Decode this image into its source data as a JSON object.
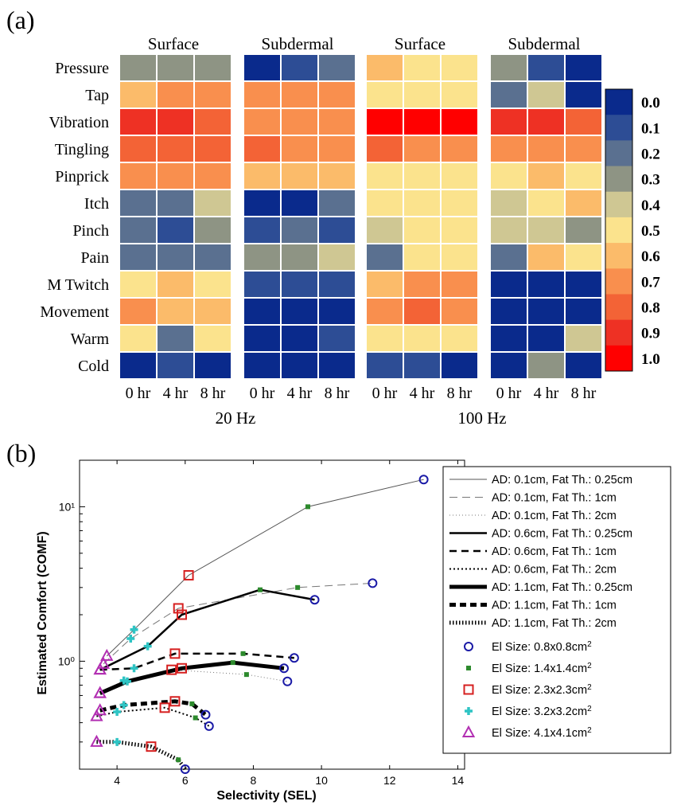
{
  "panel_a": {
    "label": "(a)",
    "group_titles": [
      "Surface",
      "Subdermal",
      "Surface",
      "Subdermal"
    ],
    "row_labels": [
      "Pressure",
      "Tap",
      "Vibration",
      "Tingling",
      "Pinprick",
      "Itch",
      "Pinch",
      "Pain",
      "M Twitch",
      "Movement",
      "Warm",
      "Cold"
    ],
    "time_labels": [
      "0 hr",
      "4 hr",
      "8 hr"
    ],
    "frequency_labels": [
      "20 Hz",
      "100 Hz"
    ],
    "colorbar_ticks": [
      "0.0",
      "0.1",
      "0.2",
      "0.3",
      "0.4",
      "0.5",
      "0.6",
      "0.7",
      "0.8",
      "0.9",
      "1.0"
    ],
    "colormap": [
      "#0a2a8c",
      "#2d4d95",
      "#5a7090",
      "#8e9484",
      "#cfc793",
      "#fbe38d",
      "#fbbb6a",
      "#f98f4e",
      "#f36336",
      "#ee3124",
      "#ff0000"
    ]
  },
  "panel_b": {
    "label": "(b)",
    "xlabel": "Selectivity (SEL)",
    "ylabel": "Estimated Comfort (COMF)",
    "x_ticks": [
      "4",
      "6",
      "8",
      "10",
      "12",
      "14"
    ],
    "y_ticks": [
      "10⁰",
      "10¹"
    ],
    "legend_lines": [
      "AD: 0.1cm, Fat Th.: 0.25cm",
      "AD: 0.1cm, Fat Th.: 1cm",
      "AD: 0.1cm, Fat Th.: 2cm",
      "AD: 0.6cm, Fat Th.: 0.25cm",
      "AD: 0.6cm, Fat Th.: 1cm",
      "AD: 0.6cm, Fat Th.: 2cm",
      "AD: 1.1cm, Fat Th.: 0.25cm",
      "AD: 1.1cm, Fat Th.: 1cm",
      "AD: 1.1cm, Fat Th.: 2cm"
    ],
    "legend_markers": [
      {
        "text": "El Size: 0.8x0.8cm",
        "sup": "2"
      },
      {
        "text": "El Size: 1.4x1.4cm",
        "sup": "2"
      },
      {
        "text": "El Size: 2.3x2.3cm",
        "sup": "2"
      },
      {
        "text": "El Size: 3.2x3.2cm",
        "sup": "2"
      },
      {
        "text": "El Size: 4.1x4.1cm",
        "sup": "2"
      }
    ]
  },
  "chart_data": [
    {
      "type": "heatmap",
      "title": "",
      "groups": [
        {
          "frequency": "20 Hz",
          "location": "Surface"
        },
        {
          "frequency": "20 Hz",
          "location": "Subdermal"
        },
        {
          "frequency": "100 Hz",
          "location": "Surface"
        },
        {
          "frequency": "100 Hz",
          "location": "Subdermal"
        }
      ],
      "rows": [
        "Pressure",
        "Tap",
        "Vibration",
        "Tingling",
        "Pinprick",
        "Itch",
        "Pinch",
        "Pain",
        "M Twitch",
        "Movement",
        "Warm",
        "Cold"
      ],
      "columns": [
        "0 hr",
        "4 hr",
        "8 hr"
      ],
      "scale": [
        0.0,
        1.0
      ],
      "values": [
        [
          [
            0.3,
            0.3,
            0.3
          ],
          [
            0.6,
            0.7,
            0.7
          ],
          [
            0.9,
            0.85,
            0.8
          ],
          [
            0.75,
            0.75,
            0.75
          ],
          [
            0.7,
            0.65,
            0.65
          ],
          [
            0.2,
            0.2,
            0.4
          ],
          [
            0.2,
            0.1,
            0.3
          ],
          [
            0.15,
            0.15,
            0.2
          ],
          [
            0.5,
            0.55,
            0.5
          ],
          [
            0.65,
            0.6,
            0.6
          ],
          [
            0.5,
            0.2,
            0.5
          ],
          [
            0.0,
            0.05,
            0.0
          ]
        ],
        [
          [
            0.0,
            0.1,
            0.2
          ],
          [
            0.65,
            0.65,
            0.7
          ],
          [
            0.65,
            0.65,
            0.7
          ],
          [
            0.75,
            0.65,
            0.65
          ],
          [
            0.55,
            0.6,
            0.6
          ],
          [
            0.0,
            0.0,
            0.2
          ],
          [
            0.1,
            0.2,
            0.1
          ],
          [
            0.3,
            0.3,
            0.4
          ],
          [
            0.1,
            0.1,
            0.1
          ],
          [
            0.0,
            0.0,
            0.0
          ],
          [
            0.0,
            0.0,
            0.05
          ],
          [
            0.0,
            0.0,
            0.0
          ]
        ],
        [
          [
            0.55,
            0.5,
            0.5
          ],
          [
            0.5,
            0.5,
            0.45
          ],
          [
            1.0,
            1.0,
            1.0
          ],
          [
            0.75,
            0.7,
            0.7
          ],
          [
            0.5,
            0.5,
            0.5
          ],
          [
            0.5,
            0.5,
            0.5
          ],
          [
            0.4,
            0.5,
            0.5
          ],
          [
            0.2,
            0.5,
            0.5
          ],
          [
            0.6,
            0.65,
            0.65
          ],
          [
            0.7,
            0.8,
            0.7
          ],
          [
            0.5,
            0.5,
            0.5
          ],
          [
            0.1,
            0.1,
            0.0
          ]
        ],
        [
          [
            0.3,
            0.1,
            0.0
          ],
          [
            0.2,
            0.4,
            0.0
          ],
          [
            0.9,
            0.85,
            0.8
          ],
          [
            0.7,
            0.7,
            0.7
          ],
          [
            0.5,
            0.55,
            0.5
          ],
          [
            0.4,
            0.5,
            0.55
          ],
          [
            0.4,
            0.4,
            0.3
          ],
          [
            0.2,
            0.55,
            0.5
          ],
          [
            0.0,
            0.0,
            0.0
          ],
          [
            0.0,
            0.0,
            0.0
          ],
          [
            0.0,
            0.0,
            0.35
          ],
          [
            0.0,
            0.3,
            0.0
          ]
        ]
      ]
    },
    {
      "type": "line",
      "title": "",
      "xlabel": "Selectivity (SEL)",
      "ylabel": "Estimated Comfort (COMF)",
      "xlim": [
        2.9,
        14.2
      ],
      "ylim": [
        0.2,
        20
      ],
      "yscale": "log",
      "legend_position": "right",
      "series": [
        {
          "name": "AD: 0.1cm, Fat Th.: 0.25cm",
          "style": "thin-solid",
          "x": [
            3.7,
            4.5,
            6.1,
            9.6,
            13.0
          ],
          "y": [
            1.08,
            1.6,
            3.6,
            10.0,
            15.0
          ],
          "markers": [
            "triangle",
            "plus",
            "square",
            "star",
            "circle"
          ]
        },
        {
          "name": "AD: 0.1cm, Fat Th.: 1cm",
          "style": "thin-dashed",
          "x": [
            3.6,
            4.4,
            5.8,
            9.3,
            11.5
          ],
          "y": [
            0.96,
            1.4,
            2.2,
            3.0,
            3.2
          ],
          "markers": [
            "triangle",
            "plus",
            "square",
            "star",
            "circle"
          ]
        },
        {
          "name": "AD: 0.1cm, Fat Th.: 2cm",
          "style": "thin-dotted",
          "x": [
            3.5,
            4.2,
            5.6,
            7.8,
            9.0
          ],
          "y": [
            0.62,
            0.75,
            0.88,
            0.82,
            0.74
          ],
          "markers": [
            "triangle",
            "plus",
            "square",
            "star",
            "circle"
          ]
        },
        {
          "name": "AD: 0.6cm, Fat Th.: 0.25cm",
          "style": "medium-solid",
          "x": [
            3.5,
            4.9,
            5.9,
            8.2,
            9.8
          ],
          "y": [
            0.88,
            1.25,
            2.0,
            2.9,
            2.5
          ],
          "markers": [
            "triangle",
            "plus",
            "square",
            "star",
            "circle"
          ]
        },
        {
          "name": "AD: 0.6cm, Fat Th.: 1cm",
          "style": "medium-dashed",
          "x": [
            3.5,
            4.5,
            5.7,
            7.7,
            9.2
          ],
          "y": [
            0.88,
            0.9,
            1.12,
            1.12,
            1.05
          ],
          "markers": [
            "triangle",
            "plus",
            "square",
            "star",
            "circle"
          ]
        },
        {
          "name": "AD: 0.6cm, Fat Th.: 2cm",
          "style": "medium-dotted",
          "x": [
            3.4,
            4.0,
            5.4,
            6.3,
            6.7
          ],
          "y": [
            0.44,
            0.47,
            0.5,
            0.43,
            0.38
          ],
          "markers": [
            "triangle",
            "plus",
            "square",
            "star",
            "circle"
          ]
        },
        {
          "name": "AD: 1.1cm, Fat Th.: 0.25cm",
          "style": "thick-solid",
          "x": [
            3.5,
            4.3,
            5.9,
            7.4,
            8.9
          ],
          "y": [
            0.62,
            0.74,
            0.9,
            0.98,
            0.9
          ],
          "markers": [
            "triangle",
            "plus",
            "square",
            "star",
            "circle"
          ]
        },
        {
          "name": "AD: 1.1cm, Fat Th.: 1cm",
          "style": "thick-dashed",
          "x": [
            3.5,
            4.2,
            5.7,
            6.2,
            6.6
          ],
          "y": [
            0.48,
            0.52,
            0.55,
            0.53,
            0.45
          ],
          "markers": [
            "triangle",
            "plus",
            "square",
            "star",
            "circle"
          ]
        },
        {
          "name": "AD: 1.1cm, Fat Th.: 2cm",
          "style": "thick-dotted",
          "x": [
            3.4,
            4.0,
            5.0,
            5.8,
            6.0
          ],
          "y": [
            0.3,
            0.3,
            0.28,
            0.23,
            0.2
          ],
          "markers": [
            "triangle",
            "plus",
            "square",
            "star",
            "circle"
          ]
        }
      ],
      "marker_legend": [
        "El Size: 0.8x0.8cm2",
        "El Size: 1.4x1.4cm2",
        "El Size: 2.3x2.3cm2",
        "El Size: 3.2x3.2cm2",
        "El Size: 4.1x4.1cm2"
      ],
      "marker_colors": {
        "circle": "#1a1aa6",
        "star": "#2d8a2d",
        "square": "#d62020",
        "plus": "#2ec4c4",
        "triangle": "#b22fb2"
      }
    }
  ]
}
